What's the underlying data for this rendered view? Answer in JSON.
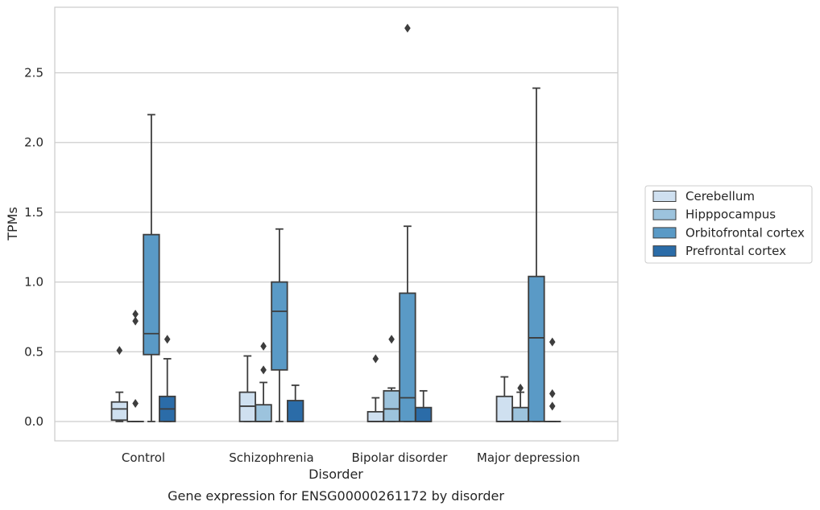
{
  "chart_data": {
    "type": "boxplot",
    "title": "",
    "caption": "Gene expression for ENSG00000261172 by disorder",
    "xlabel": "Disorder",
    "ylabel": "TPMs",
    "ylim": [
      -0.14,
      2.98
    ],
    "yticks": [
      "0.0",
      "0.5",
      "1.0",
      "1.5",
      "2.0",
      "2.5"
    ],
    "grid": "horizontal",
    "legend_position": "right",
    "categories": [
      "Control",
      "Schizophrenia",
      "Bipolar disorder",
      "Major depression"
    ],
    "series": [
      {
        "name": "Cerebellum",
        "color": "#cfe0f0",
        "boxes": [
          {
            "whislo": 0.0,
            "q1": 0.01,
            "med": 0.09,
            "q3": 0.14,
            "whishi": 0.21,
            "fliers": [
              0.51
            ]
          },
          {
            "whislo": 0.0,
            "q1": 0.0,
            "med": 0.11,
            "q3": 0.21,
            "whishi": 0.47,
            "fliers": []
          },
          {
            "whislo": 0.0,
            "q1": 0.0,
            "med": 0.0,
            "q3": 0.07,
            "whishi": 0.17,
            "fliers": [
              0.45
            ]
          },
          {
            "whislo": 0.0,
            "q1": 0.0,
            "med": 0.0,
            "q3": 0.18,
            "whishi": 0.32,
            "fliers": []
          }
        ]
      },
      {
        "name": "Hipppocampus",
        "color": "#9cc3dd",
        "boxes": [
          {
            "whislo": 0.0,
            "q1": 0.0,
            "med": 0.0,
            "q3": 0.0,
            "whishi": 0.0,
            "fliers": [
              0.13,
              0.72,
              0.77
            ]
          },
          {
            "whislo": 0.0,
            "q1": 0.0,
            "med": 0.0,
            "q3": 0.12,
            "whishi": 0.28,
            "fliers": [
              0.37,
              0.54
            ]
          },
          {
            "whislo": 0.0,
            "q1": 0.0,
            "med": 0.09,
            "q3": 0.22,
            "whishi": 0.24,
            "fliers": [
              0.59
            ]
          },
          {
            "whislo": 0.0,
            "q1": 0.0,
            "med": 0.0,
            "q3": 0.1,
            "whishi": 0.21,
            "fliers": [
              0.24
            ]
          }
        ]
      },
      {
        "name": "Orbitofrontal cortex",
        "color": "#5a9ac6",
        "boxes": [
          {
            "whislo": 0.0,
            "q1": 0.48,
            "med": 0.63,
            "q3": 1.34,
            "whishi": 2.2,
            "fliers": []
          },
          {
            "whislo": 0.0,
            "q1": 0.37,
            "med": 0.79,
            "q3": 1.0,
            "whishi": 1.38,
            "fliers": []
          },
          {
            "whislo": 0.0,
            "q1": 0.0,
            "med": 0.17,
            "q3": 0.92,
            "whishi": 1.4,
            "fliers": [
              2.82
            ]
          },
          {
            "whislo": 0.0,
            "q1": 0.0,
            "med": 0.6,
            "q3": 1.04,
            "whishi": 2.39,
            "fliers": []
          }
        ]
      },
      {
        "name": "Prefrontal cortex",
        "color": "#2b6ca8",
        "boxes": [
          {
            "whislo": 0.0,
            "q1": 0.0,
            "med": 0.09,
            "q3": 0.18,
            "whishi": 0.45,
            "fliers": [
              0.59
            ]
          },
          {
            "whislo": 0.0,
            "q1": 0.0,
            "med": 0.0,
            "q3": 0.15,
            "whishi": 0.26,
            "fliers": []
          },
          {
            "whislo": 0.0,
            "q1": 0.0,
            "med": 0.0,
            "q3": 0.1,
            "whishi": 0.22,
            "fliers": []
          },
          {
            "whislo": 0.0,
            "q1": 0.0,
            "med": 0.0,
            "q3": 0.0,
            "whishi": 0.0,
            "fliers": [
              0.11,
              0.2,
              0.57
            ]
          }
        ]
      }
    ]
  }
}
